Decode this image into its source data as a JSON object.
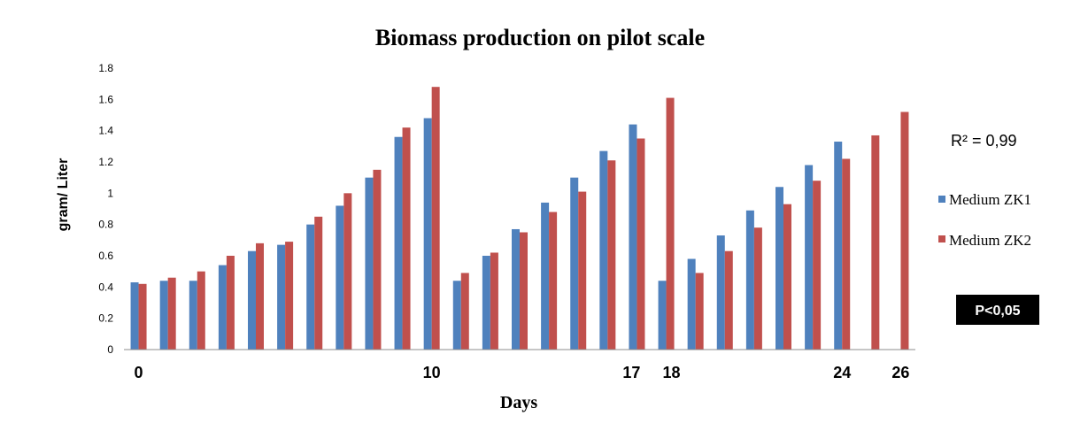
{
  "chart_data": {
    "type": "bar",
    "title": "Biomass production on pilot scale",
    "xlabel": "Days",
    "ylabel": "gram/ Liter",
    "ylim": [
      0,
      1.8
    ],
    "y_ticks": [
      "0",
      "0.2",
      "0.4",
      "0.6",
      "0.8",
      "1",
      "1.2",
      "1.4",
      "1.6",
      "1.8"
    ],
    "x_tick_labels": [
      {
        "day": 0,
        "label": "0"
      },
      {
        "day": 10,
        "label": "10"
      },
      {
        "day": 17,
        "label": "17"
      },
      {
        "day": 18,
        "label": "18"
      },
      {
        "day": 24,
        "label": "24"
      },
      {
        "day": 26,
        "label": "26"
      }
    ],
    "categories": [
      0,
      1,
      2,
      3,
      4,
      5,
      6,
      7,
      8,
      9,
      10,
      11,
      12,
      13,
      14,
      15,
      16,
      17,
      18,
      19,
      20,
      21,
      22,
      23,
      24,
      25,
      26
    ],
    "series": [
      {
        "name": "Medium ZK1",
        "color": "#4F81BD",
        "values": [
          0.43,
          0.44,
          0.44,
          0.54,
          0.63,
          0.67,
          0.8,
          0.92,
          1.1,
          1.36,
          1.48,
          0.44,
          0.6,
          0.77,
          0.94,
          1.1,
          1.27,
          1.44,
          0.44,
          0.58,
          0.73,
          0.89,
          1.04,
          1.18,
          1.33,
          null,
          null
        ]
      },
      {
        "name": "Medium ZK2",
        "color": "#C0504D",
        "values": [
          0.42,
          0.46,
          0.5,
          0.6,
          0.68,
          0.69,
          0.85,
          1.0,
          1.15,
          1.42,
          1.68,
          0.49,
          0.62,
          0.75,
          0.88,
          1.01,
          1.21,
          1.35,
          1.61,
          0.49,
          0.63,
          0.78,
          0.93,
          1.08,
          1.22,
          1.37,
          1.52
        ]
      }
    ],
    "grid": false,
    "legend_position": "right",
    "annotations": [
      "R² = 0,99",
      "P<0,05"
    ]
  }
}
